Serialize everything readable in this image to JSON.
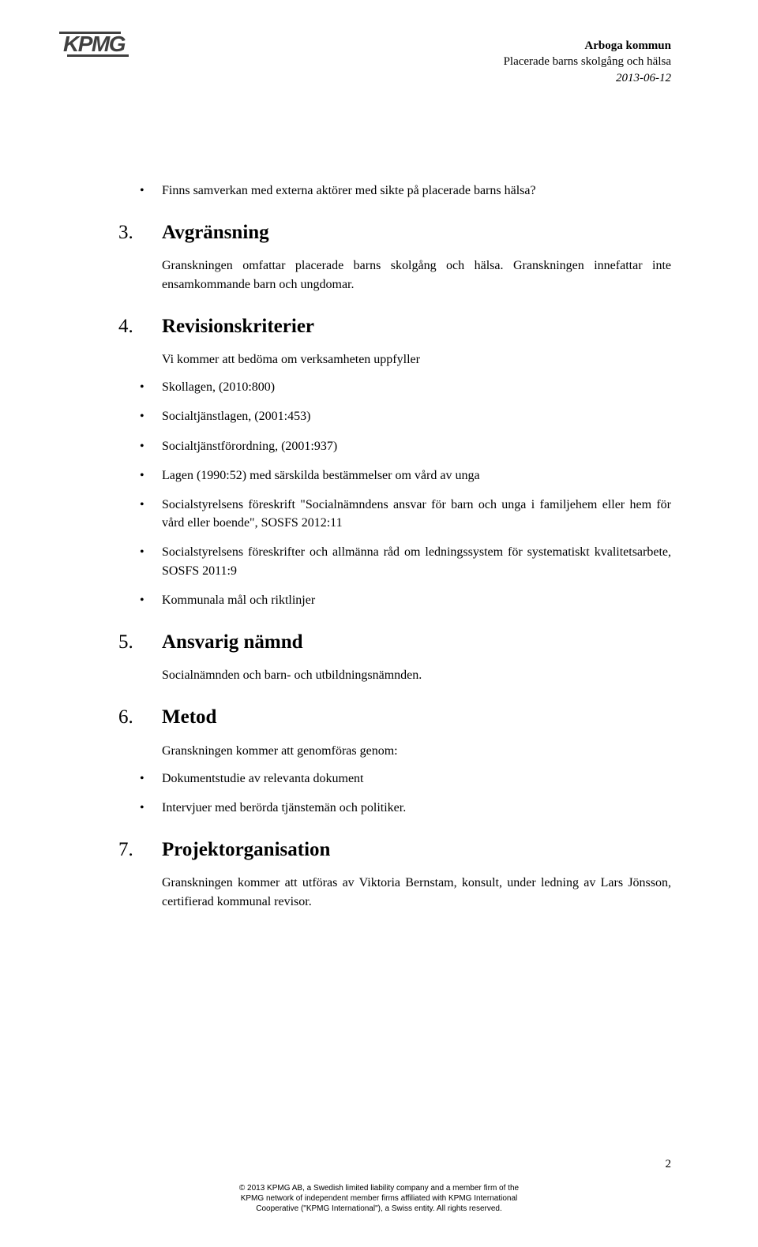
{
  "logo": {
    "text": "KPMG"
  },
  "header": {
    "line1_bold": "Arboga kommun",
    "line2": "Placerade barns skolgång och hälsa",
    "line3_italic": "2013-06-12"
  },
  "intro_bullet": "Finns samverkan med externa aktörer med sikte på placerade barns hälsa?",
  "sections": {
    "s3": {
      "num": "3.",
      "title": "Avgränsning",
      "p1": "Granskningen omfattar placerade barns skolgång och hälsa. Granskningen innefattar inte ensamkommande barn och ungdomar."
    },
    "s4": {
      "num": "4.",
      "title": "Revisionskriterier",
      "p1": "Vi kommer att bedöma om verksamheten uppfyller",
      "bullets": [
        "Skollagen, (2010:800)",
        "Socialtjänstlagen, (2001:453)",
        "Socialtjänstförordning, (2001:937)",
        "Lagen (1990:52) med särskilda bestämmelser om vård av unga",
        "Socialstyrelsens föreskrift \"Socialnämndens ansvar för barn och unga i familjehem eller hem för vård eller boende\", SOSFS 2012:11",
        "Socialstyrelsens föreskrifter och allmänna råd om ledningssystem för systematiskt kvalitetsarbete, SOSFS 2011:9",
        "Kommunala mål och riktlinjer"
      ]
    },
    "s5": {
      "num": "5.",
      "title": "Ansvarig nämnd",
      "p1": "Socialnämnden och barn- och utbildningsnämnden."
    },
    "s6": {
      "num": "6.",
      "title": "Metod",
      "p1": "Granskningen kommer att genomföras genom:",
      "bullets": [
        "Dokumentstudie av relevanta dokument",
        "Intervjuer med berörda tjänstemän och politiker."
      ]
    },
    "s7": {
      "num": "7.",
      "title": "Projektorganisation",
      "p1": "Granskningen kommer att utföras av Viktoria Bernstam, konsult, under ledning av Lars Jönsson, certifierad kommunal revisor."
    }
  },
  "page_number": "2",
  "footer": {
    "line1": "© 2013 KPMG AB, a Swedish limited liability company and a member firm of the",
    "line2": "KPMG network of independent member firms affiliated with KPMG International",
    "line3": "Cooperative (\"KPMG International\"), a Swiss entity. All rights reserved."
  }
}
